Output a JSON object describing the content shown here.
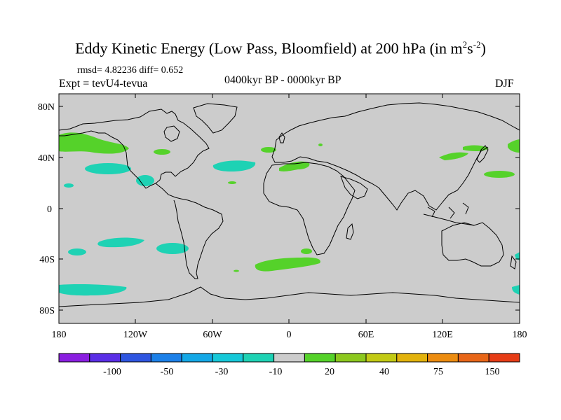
{
  "title": {
    "text": "Eddy Kinetic Energy (Low Pass, Bloomfield) at 200 hPa (in m",
    "sup1": "2",
    "mid": "s",
    "sup2": "-2",
    "end": ")"
  },
  "stats": "rmsd= 4.82236  diff= 0.652",
  "experiment": "Expt = tevU4-tevua",
  "period": "0400kyr BP - 0000kyr BP",
  "season": "DJF",
  "lat_labels": [
    "80N",
    "40N",
    "0",
    "40S",
    "80S"
  ],
  "lon_labels": [
    "180",
    "120W",
    "60W",
    "0",
    "60E",
    "120E",
    "180"
  ],
  "colorbar": {
    "colors": [
      "#8a1ee0",
      "#5a2ee6",
      "#2e55e0",
      "#1c80e8",
      "#14a8e6",
      "#16c8d8",
      "#1ed2b4",
      "#cccccc",
      "#55d22a",
      "#8cc81e",
      "#c2ca14",
      "#e2b20c",
      "#ec8c10",
      "#e86618",
      "#e63c16"
    ],
    "labels": [
      "-100",
      "-50",
      "-30",
      "-10",
      "20",
      "40",
      "75",
      "150"
    ]
  },
  "colors": {
    "land_ocean": "#cccccc",
    "positive_light": "#55d22a",
    "negative_light": "#1ed2b4",
    "coast": "#000000"
  }
}
